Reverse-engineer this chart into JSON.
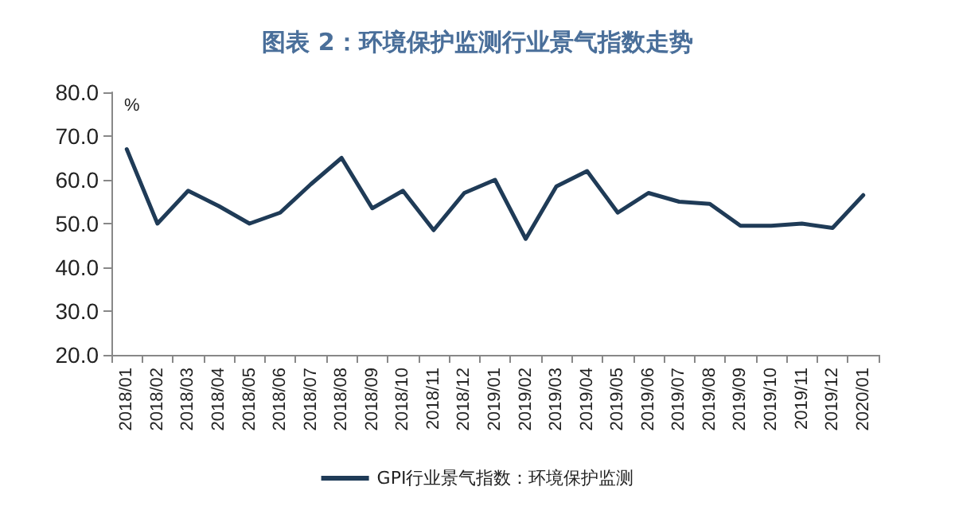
{
  "chart_data": {
    "type": "line",
    "title": "图表 2：环境保护监测行业景气指数走势",
    "ylabel": "%",
    "categories": [
      "2018/01",
      "2018/02",
      "2018/03",
      "2018/04",
      "2018/05",
      "2018/06",
      "2018/07",
      "2018/08",
      "2018/09",
      "2018/10",
      "2018/11",
      "2018/12",
      "2019/01",
      "2019/02",
      "2019/03",
      "2019/04",
      "2019/05",
      "2019/06",
      "2019/07",
      "2019/08",
      "2019/09",
      "2019/10",
      "2019/11",
      "2019/12",
      "2020/01"
    ],
    "series": [
      {
        "name": "GPI行业景气指数：环境保护监测",
        "color": "#1f3b57",
        "values": [
          67,
          50,
          57.5,
          54,
          50,
          52.5,
          59,
          65,
          53.5,
          57.5,
          48.5,
          57,
          60,
          46.5,
          58.5,
          62,
          52.5,
          57,
          55,
          54.5,
          49.5,
          49.5,
          50,
          49,
          56.5
        ]
      }
    ],
    "ylim": [
      20,
      80
    ],
    "yticks": [
      {
        "value": 20,
        "label": "20.0"
      },
      {
        "value": 30,
        "label": "30.0"
      },
      {
        "value": 40,
        "label": "40.0"
      },
      {
        "value": 50,
        "label": "50.0"
      },
      {
        "value": 60,
        "label": "60.0"
      },
      {
        "value": 70,
        "label": "70.0"
      },
      {
        "value": 80,
        "label": "80.0"
      }
    ],
    "grid": false,
    "legend": "bottom",
    "marker": "none",
    "line_style": "solid"
  }
}
